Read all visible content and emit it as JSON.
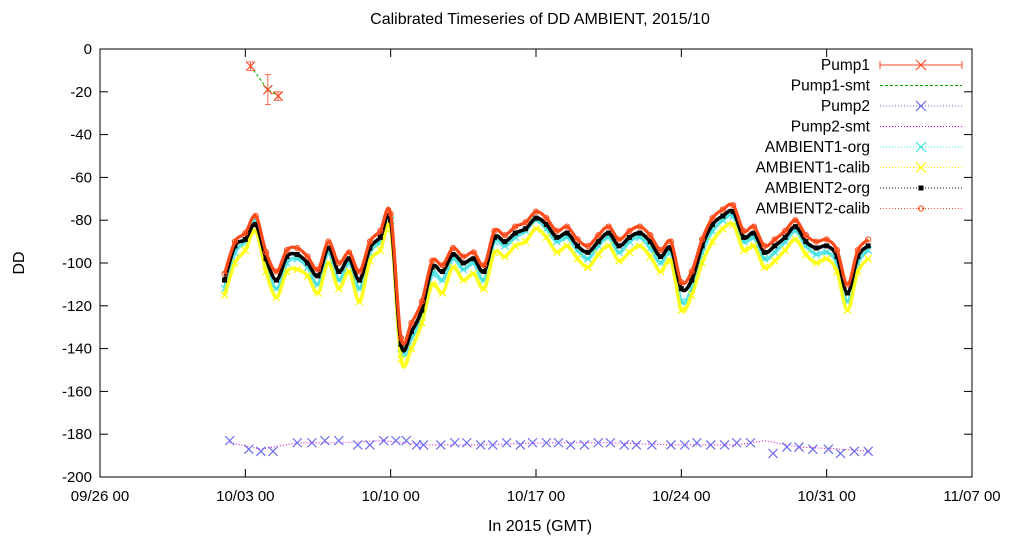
{
  "chart_data": {
    "type": "line",
    "title": "Calibrated Timeseries of DD AMBIENT, 2015/10",
    "xlabel": "In 2015 (GMT)",
    "ylabel": "DD",
    "x_unit": "date",
    "xlim": [
      "2015-09-26 00:00",
      "2015-11-07 00:00"
    ],
    "ylim": [
      -200,
      0
    ],
    "grid": false,
    "legend_position": "top-right",
    "x_ticks": [
      {
        "value": "2015-09-26 00:00",
        "label": "09/26 00"
      },
      {
        "value": "2015-10-03 00:00",
        "label": "10/03 00"
      },
      {
        "value": "2015-10-10 00:00",
        "label": "10/10 00"
      },
      {
        "value": "2015-10-17 00:00",
        "label": "10/17 00"
      },
      {
        "value": "2015-10-24 00:00",
        "label": "10/24 00"
      },
      {
        "value": "2015-10-31 00:00",
        "label": "10/31 00"
      },
      {
        "value": "2015-11-07 00:00",
        "label": "11/07 00"
      }
    ],
    "y_ticks": [
      0,
      -20,
      -40,
      -60,
      -80,
      -100,
      -120,
      -140,
      -160,
      -180,
      -200
    ],
    "series": [
      {
        "name": "Pump1",
        "color": "#ff4a26",
        "marker": "x",
        "style": "points-errorbars",
        "x": [
          "2015-10-03 06:00",
          "2015-10-04 02:00",
          "2015-10-04 14:00"
        ],
        "y": [
          -8,
          -19,
          -22
        ],
        "err": [
          2,
          7,
          2
        ]
      },
      {
        "name": "Pump1-smt",
        "color": "#00b000",
        "marker": "none",
        "style": "dashed",
        "x": [
          "2015-10-03 06:00",
          "2015-10-04 02:00",
          "2015-10-04 14:00"
        ],
        "y": [
          -8,
          -19,
          -22
        ]
      },
      {
        "name": "Pump2",
        "color": "#6a6af0",
        "marker": "x",
        "style": "points",
        "x": [
          "2015-10-02 06:00",
          "2015-10-03 04:00",
          "2015-10-03 18:00",
          "2015-10-04 08:00",
          "2015-10-05 12:00",
          "2015-10-06 05:00",
          "2015-10-06 20:00",
          "2015-10-07 12:00",
          "2015-10-08 10:00",
          "2015-10-09 00:00",
          "2015-10-09 16:00",
          "2015-10-10 06:00",
          "2015-10-10 18:00",
          "2015-10-11 06:00",
          "2015-10-11 14:00",
          "2015-10-12 10:00",
          "2015-10-13 02:00",
          "2015-10-13 16:00",
          "2015-10-14 08:00",
          "2015-10-14 22:00",
          "2015-10-15 14:00",
          "2015-10-16 06:00",
          "2015-10-16 20:00",
          "2015-10-17 12:00",
          "2015-10-18 02:00",
          "2015-10-18 16:00",
          "2015-10-19 08:00",
          "2015-10-20 00:00",
          "2015-10-20 14:00",
          "2015-10-21 06:00",
          "2015-10-21 20:00",
          "2015-10-22 14:00",
          "2015-10-23 12:00",
          "2015-10-24 04:00",
          "2015-10-24 18:00",
          "2015-10-25 10:00",
          "2015-10-26 02:00",
          "2015-10-26 16:00",
          "2015-10-27 08:00",
          "2015-10-28 10:00",
          "2015-10-29 02:00",
          "2015-10-29 16:00",
          "2015-10-30 08:00",
          "2015-10-31 02:00",
          "2015-10-31 16:00",
          "2015-11-01 08:00",
          "2015-11-02 00:00"
        ],
        "y": [
          -183,
          -187,
          -188,
          -188,
          -184,
          -184,
          -183,
          -183,
          -185,
          -185,
          -183,
          -183,
          -183,
          -185,
          -185,
          -185,
          -184,
          -184,
          -185,
          -185,
          -184,
          -185,
          -184,
          -184,
          -184,
          -185,
          -185,
          -184,
          -184,
          -185,
          -185,
          -185,
          -185,
          -185,
          -184,
          -185,
          -185,
          -184,
          -184,
          -189,
          -186,
          -186,
          -187,
          -187,
          -189,
          -188,
          -188
        ]
      },
      {
        "name": "Pump2-smt",
        "color": "#d000d0",
        "marker": "none",
        "style": "dotted",
        "x": [
          "2015-10-02 06:00",
          "2015-10-03 18:00",
          "2015-10-05 12:00",
          "2015-10-07 12:00",
          "2015-10-09 16:00",
          "2015-10-11 14:00",
          "2015-10-14 08:00",
          "2015-10-17 12:00",
          "2015-10-20 14:00",
          "2015-10-23 12:00",
          "2015-10-26 16:00",
          "2015-10-28 00:00",
          "2015-10-29 16:00",
          "2015-10-31 16:00",
          "2015-11-02 00:00"
        ],
        "y": [
          -184,
          -187,
          -184,
          -184,
          -183,
          -185,
          -185,
          -184,
          -184,
          -185,
          -185,
          -183,
          -186,
          -187,
          -188
        ]
      },
      {
        "name": "AMBIENT1-org",
        "color": "#40e0e0",
        "marker": "x",
        "style": "points",
        "x": [
          "2015-10-02 00:00",
          "2015-10-02 12:00",
          "2015-10-03 00:00",
          "2015-10-03 12:00",
          "2015-10-04 00:00",
          "2015-10-04 12:00",
          "2015-10-05 00:00",
          "2015-10-05 12:00",
          "2015-10-06 00:00",
          "2015-10-06 12:00",
          "2015-10-07 00:00",
          "2015-10-07 12:00",
          "2015-10-08 00:00",
          "2015-10-08 12:00",
          "2015-10-09 00:00",
          "2015-10-09 12:00",
          "2015-10-10 00:00",
          "2015-10-10 12:00",
          "2015-10-11 00:00",
          "2015-10-11 12:00",
          "2015-10-12 00:00",
          "2015-10-12 12:00",
          "2015-10-13 00:00",
          "2015-10-13 12:00",
          "2015-10-14 00:00",
          "2015-10-14 12:00",
          "2015-10-15 00:00",
          "2015-10-15 12:00",
          "2015-10-16 00:00",
          "2015-10-16 12:00",
          "2015-10-17 00:00",
          "2015-10-17 12:00",
          "2015-10-18 00:00",
          "2015-10-18 12:00",
          "2015-10-19 00:00",
          "2015-10-19 12:00",
          "2015-10-20 00:00",
          "2015-10-20 12:00",
          "2015-10-21 00:00",
          "2015-10-21 12:00",
          "2015-10-22 00:00",
          "2015-10-22 12:00",
          "2015-10-23 00:00",
          "2015-10-23 12:00",
          "2015-10-24 00:00",
          "2015-10-24 12:00",
          "2015-10-25 00:00",
          "2015-10-25 12:00",
          "2015-10-26 00:00",
          "2015-10-26 12:00",
          "2015-10-27 00:00",
          "2015-10-27 12:00",
          "2015-10-28 00:00",
          "2015-10-28 12:00",
          "2015-10-29 00:00",
          "2015-10-29 12:00",
          "2015-10-30 00:00",
          "2015-10-30 12:00",
          "2015-10-31 00:00",
          "2015-10-31 12:00",
          "2015-11-01 00:00",
          "2015-11-01 12:00",
          "2015-11-02 00:00"
        ],
        "y": [
          -112,
          -95,
          -90,
          -80,
          -100,
          -112,
          -100,
          -98,
          -102,
          -110,
          -95,
          -108,
          -100,
          -112,
          -95,
          -90,
          -80,
          -140,
          -135,
          -125,
          -105,
          -108,
          -98,
          -103,
          -100,
          -108,
          -90,
          -92,
          -88,
          -85,
          -80,
          -84,
          -90,
          -88,
          -94,
          -98,
          -92,
          -88,
          -95,
          -90,
          -88,
          -93,
          -100,
          -95,
          -118,
          -112,
          -95,
          -85,
          -80,
          -78,
          -90,
          -88,
          -98,
          -95,
          -90,
          -85,
          -92,
          -96,
          -95,
          -100,
          -118,
          -100,
          -94
        ]
      },
      {
        "name": "AMBIENT1-calib",
        "color": "#ffff00",
        "marker": "x",
        "style": "points",
        "x": [
          "2015-10-02 00:00",
          "2015-10-02 12:00",
          "2015-10-03 00:00",
          "2015-10-03 12:00",
          "2015-10-04 00:00",
          "2015-10-04 12:00",
          "2015-10-05 00:00",
          "2015-10-05 12:00",
          "2015-10-06 00:00",
          "2015-10-06 12:00",
          "2015-10-07 00:00",
          "2015-10-07 12:00",
          "2015-10-08 00:00",
          "2015-10-08 12:00",
          "2015-10-09 00:00",
          "2015-10-09 12:00",
          "2015-10-10 00:00",
          "2015-10-10 12:00",
          "2015-10-11 00:00",
          "2015-10-11 12:00",
          "2015-10-12 00:00",
          "2015-10-12 12:00",
          "2015-10-13 00:00",
          "2015-10-13 12:00",
          "2015-10-14 00:00",
          "2015-10-14 12:00",
          "2015-10-15 00:00",
          "2015-10-15 12:00",
          "2015-10-16 00:00",
          "2015-10-16 12:00",
          "2015-10-17 00:00",
          "2015-10-17 12:00",
          "2015-10-18 00:00",
          "2015-10-18 12:00",
          "2015-10-19 00:00",
          "2015-10-19 12:00",
          "2015-10-20 00:00",
          "2015-10-20 12:00",
          "2015-10-21 00:00",
          "2015-10-21 12:00",
          "2015-10-22 00:00",
          "2015-10-22 12:00",
          "2015-10-23 00:00",
          "2015-10-23 12:00",
          "2015-10-24 00:00",
          "2015-10-24 12:00",
          "2015-10-25 00:00",
          "2015-10-25 12:00",
          "2015-10-26 00:00",
          "2015-10-26 12:00",
          "2015-10-27 00:00",
          "2015-10-27 12:00",
          "2015-10-28 00:00",
          "2015-10-28 12:00",
          "2015-10-29 00:00",
          "2015-10-29 12:00",
          "2015-10-30 00:00",
          "2015-10-30 12:00",
          "2015-10-31 00:00",
          "2015-10-31 12:00",
          "2015-11-01 00:00",
          "2015-11-01 12:00",
          "2015-11-02 00:00"
        ],
        "y": [
          -115,
          -100,
          -94,
          -85,
          -104,
          -116,
          -104,
          -103,
          -106,
          -114,
          -100,
          -112,
          -104,
          -118,
          -99,
          -94,
          -84,
          -145,
          -140,
          -128,
          -110,
          -114,
          -102,
          -108,
          -105,
          -112,
          -95,
          -97,
          -92,
          -90,
          -84,
          -88,
          -95,
          -92,
          -98,
          -102,
          -96,
          -92,
          -99,
          -95,
          -92,
          -97,
          -104,
          -99,
          -122,
          -115,
          -100,
          -90,
          -84,
          -82,
          -94,
          -92,
          -102,
          -99,
          -94,
          -89,
          -96,
          -100,
          -98,
          -104,
          -122,
          -104,
          -98
        ]
      },
      {
        "name": "AMBIENT2-org",
        "color": "#000000",
        "marker": "square",
        "style": "points",
        "x": [
          "2015-10-02 00:00",
          "2015-10-02 12:00",
          "2015-10-03 00:00",
          "2015-10-03 12:00",
          "2015-10-04 00:00",
          "2015-10-04 12:00",
          "2015-10-05 00:00",
          "2015-10-05 12:00",
          "2015-10-06 00:00",
          "2015-10-06 12:00",
          "2015-10-07 00:00",
          "2015-10-07 12:00",
          "2015-10-08 00:00",
          "2015-10-08 12:00",
          "2015-10-09 00:00",
          "2015-10-09 12:00",
          "2015-10-10 00:00",
          "2015-10-10 12:00",
          "2015-10-11 00:00",
          "2015-10-11 12:00",
          "2015-10-12 00:00",
          "2015-10-12 12:00",
          "2015-10-13 00:00",
          "2015-10-13 12:00",
          "2015-10-14 00:00",
          "2015-10-14 12:00",
          "2015-10-15 00:00",
          "2015-10-15 12:00",
          "2015-10-16 00:00",
          "2015-10-16 12:00",
          "2015-10-17 00:00",
          "2015-10-17 12:00",
          "2015-10-18 00:00",
          "2015-10-18 12:00",
          "2015-10-19 00:00",
          "2015-10-19 12:00",
          "2015-10-20 00:00",
          "2015-10-20 12:00",
          "2015-10-21 00:00",
          "2015-10-21 12:00",
          "2015-10-22 00:00",
          "2015-10-22 12:00",
          "2015-10-23 00:00",
          "2015-10-23 12:00",
          "2015-10-24 00:00",
          "2015-10-24 12:00",
          "2015-10-25 00:00",
          "2015-10-25 12:00",
          "2015-10-26 00:00",
          "2015-10-26 12:00",
          "2015-10-27 00:00",
          "2015-10-27 12:00",
          "2015-10-28 00:00",
          "2015-10-28 12:00",
          "2015-10-29 00:00",
          "2015-10-29 12:00",
          "2015-10-30 00:00",
          "2015-10-30 12:00",
          "2015-10-31 00:00",
          "2015-10-31 12:00",
          "2015-11-01 00:00",
          "2015-11-01 12:00",
          "2015-11-02 00:00"
        ],
        "y": [
          -108,
          -92,
          -89,
          -82,
          -98,
          -108,
          -97,
          -96,
          -100,
          -106,
          -93,
          -104,
          -98,
          -108,
          -93,
          -88,
          -80,
          -138,
          -132,
          -122,
          -102,
          -104,
          -96,
          -100,
          -98,
          -104,
          -88,
          -90,
          -86,
          -84,
          -79,
          -82,
          -88,
          -86,
          -92,
          -95,
          -90,
          -86,
          -92,
          -88,
          -86,
          -90,
          -97,
          -93,
          -112,
          -108,
          -92,
          -82,
          -78,
          -76,
          -88,
          -86,
          -95,
          -92,
          -88,
          -83,
          -90,
          -93,
          -92,
          -97,
          -114,
          -97,
          -92
        ]
      },
      {
        "name": "AMBIENT2-calib",
        "color": "#ff4a1a",
        "marker": "circle",
        "style": "points",
        "x": [
          "2015-10-02 00:00",
          "2015-10-02 12:00",
          "2015-10-03 00:00",
          "2015-10-03 12:00",
          "2015-10-04 00:00",
          "2015-10-04 12:00",
          "2015-10-05 00:00",
          "2015-10-05 12:00",
          "2015-10-06 00:00",
          "2015-10-06 12:00",
          "2015-10-07 00:00",
          "2015-10-07 12:00",
          "2015-10-08 00:00",
          "2015-10-08 12:00",
          "2015-10-09 00:00",
          "2015-10-09 12:00",
          "2015-10-10 00:00",
          "2015-10-10 12:00",
          "2015-10-11 00:00",
          "2015-10-11 12:00",
          "2015-10-12 00:00",
          "2015-10-12 12:00",
          "2015-10-13 00:00",
          "2015-10-13 12:00",
          "2015-10-14 00:00",
          "2015-10-14 12:00",
          "2015-10-15 00:00",
          "2015-10-15 12:00",
          "2015-10-16 00:00",
          "2015-10-16 12:00",
          "2015-10-17 00:00",
          "2015-10-17 12:00",
          "2015-10-18 00:00",
          "2015-10-18 12:00",
          "2015-10-19 00:00",
          "2015-10-19 12:00",
          "2015-10-20 00:00",
          "2015-10-20 12:00",
          "2015-10-21 00:00",
          "2015-10-21 12:00",
          "2015-10-22 00:00",
          "2015-10-22 12:00",
          "2015-10-23 00:00",
          "2015-10-23 12:00",
          "2015-10-24 00:00",
          "2015-10-24 12:00",
          "2015-10-25 00:00",
          "2015-10-25 12:00",
          "2015-10-26 00:00",
          "2015-10-26 12:00",
          "2015-10-27 00:00",
          "2015-10-27 12:00",
          "2015-10-28 00:00",
          "2015-10-28 12:00",
          "2015-10-29 00:00",
          "2015-10-29 12:00",
          "2015-10-30 00:00",
          "2015-10-30 12:00",
          "2015-10-31 00:00",
          "2015-10-31 12:00",
          "2015-11-01 00:00",
          "2015-11-01 12:00",
          "2015-11-02 00:00"
        ],
        "y": [
          -105,
          -90,
          -86,
          -78,
          -95,
          -104,
          -94,
          -93,
          -97,
          -103,
          -90,
          -100,
          -95,
          -104,
          -90,
          -85,
          -77,
          -135,
          -128,
          -118,
          -99,
          -101,
          -93,
          -97,
          -95,
          -101,
          -85,
          -87,
          -83,
          -81,
          -76,
          -79,
          -85,
          -83,
          -89,
          -92,
          -87,
          -83,
          -89,
          -85,
          -83,
          -87,
          -94,
          -90,
          -109,
          -104,
          -89,
          -79,
          -75,
          -73,
          -85,
          -83,
          -92,
          -89,
          -85,
          -80,
          -87,
          -90,
          -89,
          -94,
          -110,
          -94,
          -89
        ]
      }
    ]
  }
}
